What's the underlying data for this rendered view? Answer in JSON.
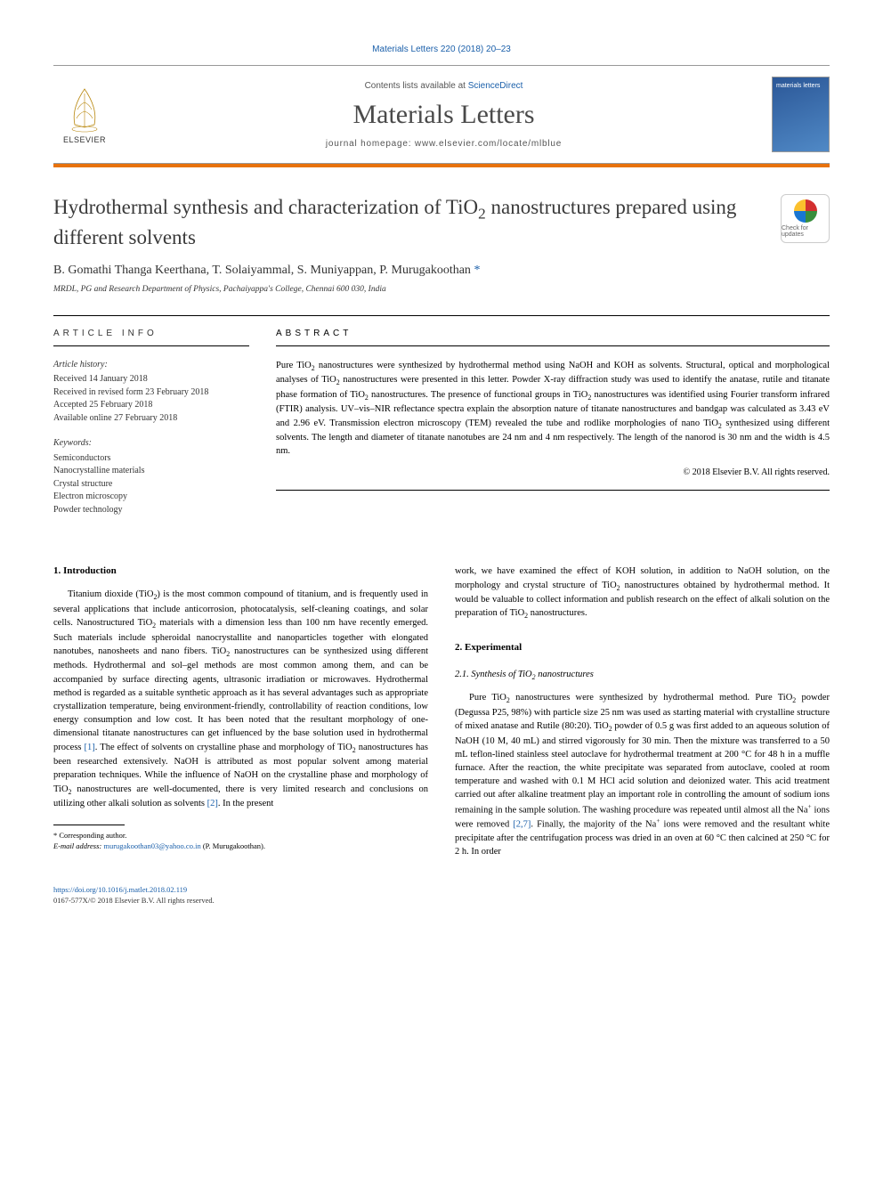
{
  "citation": "Materials Letters 220 (2018) 20–23",
  "header": {
    "contents_prefix": "Contents lists available at ",
    "contents_link": "ScienceDirect",
    "journal_title": "Materials Letters",
    "homepage_prefix": "journal homepage: ",
    "homepage_url": "www.elsevier.com/locate/mlblue",
    "elsevier_label": "ELSEVIER",
    "cover_label": "materials letters"
  },
  "colors": {
    "accent_orange": "#e8720c",
    "link_blue": "#1a5faa",
    "title_gray": "#4a4a4a",
    "cover_gradient_start": "#2b5797",
    "cover_gradient_end": "#5089c6"
  },
  "article": {
    "title_html": "Hydrothermal synthesis and characterization of TiO<sub>2</sub> nanostructures prepared using different solvents",
    "check_updates": "Check for updates",
    "authors_html": "B. Gomathi Thanga Keerthana, T. Solaiyammal, S. Muniyappan, P. Murugakoothan <span class='corr'>*</span>",
    "affiliation": "MRDL, PG and Research Department of Physics, Pachaiyappa's College, Chennai 600 030, India"
  },
  "info": {
    "heading": "ARTICLE INFO",
    "history_label": "Article history:",
    "history": [
      "Received 14 January 2018",
      "Received in revised form 23 February 2018",
      "Accepted 25 February 2018",
      "Available online 27 February 2018"
    ],
    "keywords_label": "Keywords:",
    "keywords": [
      "Semiconductors",
      "Nanocrystalline materials",
      "Crystal structure",
      "Electron microscopy",
      "Powder technology"
    ]
  },
  "abstract": {
    "heading": "ABSTRACT",
    "text_html": "Pure TiO<sub>2</sub> nanostructures were synthesized by hydrothermal method using NaOH and KOH as solvents. Structural, optical and morphological analyses of TiO<sub>2</sub> nanostructures were presented in this letter. Powder X-ray diffraction study was used to identify the anatase, rutile and titanate phase formation of TiO<sub>2</sub> nanostructures. The presence of functional groups in TiO<sub>2</sub> nanostructures was identified using Fourier transform infrared (FTIR) analysis. UV–vis–NIR reflectance spectra explain the absorption nature of titanate nanostructures and bandgap was calculated as 3.43 eV and 2.96 eV. Transmission electron microscopy (TEM) revealed the tube and rodlike morphologies of nano TiO<sub>2</sub> synthesized using different solvents. The length and diameter of titanate nanotubes are 24 nm and 4 nm respectively. The length of the nanorod is 30 nm and the width is 4.5 nm.",
    "copyright": "© 2018 Elsevier B.V. All rights reserved."
  },
  "body": {
    "s1_heading": "1. Introduction",
    "s1_p1_html": "Titanium dioxide (TiO<sub>2</sub>) is the most common compound of titanium, and is frequently used in several applications that include anticorrosion, photocatalysis, self-cleaning coatings, and solar cells. Nanostructured TiO<sub>2</sub> materials with a dimension less than 100 nm have recently emerged. Such materials include spheroidal nanocrystallite and nanoparticles together with elongated nanotubes, nanosheets and nano fibers. TiO<sub>2</sub> nanostructures can be synthesized using different methods. Hydrothermal and sol–gel methods are most common among them, and can be accompanied by surface directing agents, ultrasonic irradiation or microwaves. Hydrothermal method is regarded as a suitable synthetic approach as it has several advantages such as appropriate crystallization temperature, being environment-friendly, controllability of reaction conditions, low energy consumption and low cost. It has been noted that the resultant morphology of one-dimensional titanate nanostructures can get influenced by the base solution used in hydrothermal process <span class='ref-link'>[1]</span>. The effect of solvents on crystalline phase and morphology of TiO<sub>2</sub> nanostructures has been researched extensively. NaOH is attributed as most popular solvent among material preparation techniques. While the influence of NaOH on the crystalline phase and morphology of TiO<sub>2</sub> nanostructures are well-documented, there is very limited research and conclusions on utilizing other alkali solution as solvents <span class='ref-link'>[2]</span>. In the present",
    "s1_p2_html": "work, we have examined the effect of KOH solution, in addition to NaOH solution, on the morphology and crystal structure of TiO<sub>2</sub> nanostructures obtained by hydrothermal method. It would be valuable to collect information and publish research on the effect of alkali solution on the preparation of TiO<sub>2</sub> nanostructures.",
    "s2_heading": "2. Experimental",
    "s2_1_heading_html": "2.1. Synthesis of TiO<sub>2</sub> nanostructures",
    "s2_1_p1_html": "Pure TiO<sub>2</sub> nanostructures were synthesized by hydrothermal method. Pure TiO<sub>2</sub> powder (Degussa P25, 98%) with particle size 25 nm was used as starting material with crystalline structure of mixed anatase and Rutile (80:20). TiO<sub>2</sub> powder of 0.5 g was first added to an aqueous solution of NaOH (10 M, 40 mL) and stirred vigorously for 30 min. Then the mixture was transferred to a 50 mL teflon-lined stainless steel autoclave for hydrothermal treatment at 200 °C for 48 h in a muffle furnace. After the reaction, the white precipitate was separated from autoclave, cooled at room temperature and washed with 0.1 M HCl acid solution and deionized water. This acid treatment carried out after alkaline treatment play an important role in controlling the amount of sodium ions remaining in the sample solution. The washing procedure was repeated until almost all the Na<sup>+</sup> ions were removed <span class='ref-link'>[2,7]</span>. Finally, the majority of the Na<sup>+</sup> ions were removed and the resultant white precipitate after the centrifugation process was dried in an oven at 60 °C then calcined at 250 °C for 2 h. In order"
  },
  "footnote": {
    "corr_label": "* Corresponding author.",
    "email_label": "E-mail address: ",
    "email": "murugakoothan03@yahoo.co.in",
    "email_suffix": " (P. Murugakoothan)."
  },
  "footer": {
    "doi_url": "https://doi.org/10.1016/j.matlet.2018.02.119",
    "issn_line": "0167-577X/© 2018 Elsevier B.V. All rights reserved."
  }
}
